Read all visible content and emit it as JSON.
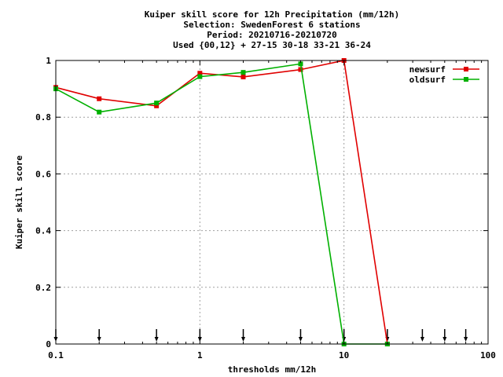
{
  "chart_data": {
    "type": "line",
    "title_lines": [
      "Kuiper skill score  for 12h Precipitation (mm/12h)",
      "Selection: SwedenForest      6 stations",
      "Period: 20210716-20210720",
      "Used {00,12} + 27-15 30-18 33-21 36-24"
    ],
    "xlabel": "thresholds mm/12h",
    "ylabel": "Kuiper skill score",
    "x_scale": "log",
    "xlim": [
      0.1,
      100
    ],
    "ylim": [
      0,
      1
    ],
    "grid": true,
    "legend_position": "top-right",
    "x_ticks": [
      {
        "value": 0.1,
        "label": "0.1"
      },
      {
        "value": 1,
        "label": "1"
      },
      {
        "value": 10,
        "label": "10"
      },
      {
        "value": 100,
        "label": "100"
      }
    ],
    "y_ticks": [
      {
        "value": 0,
        "label": "0"
      },
      {
        "value": 0.2,
        "label": "0.2"
      },
      {
        "value": 0.4,
        "label": "0.4"
      },
      {
        "value": 0.6,
        "label": "0.6"
      },
      {
        "value": 0.8,
        "label": "0.8"
      },
      {
        "value": 1,
        "label": "1"
      }
    ],
    "threshold_markers": [
      0.1,
      0.2,
      0.5,
      1,
      2,
      5,
      10,
      20,
      35,
      50,
      70
    ],
    "series": [
      {
        "name": "newsurf",
        "color": "#e00000",
        "x": [
          0.1,
          0.2,
          0.5,
          1,
          2,
          5,
          10,
          20
        ],
        "y": [
          0.905,
          0.865,
          0.84,
          0.955,
          0.942,
          0.968,
          1.0,
          0.0
        ]
      },
      {
        "name": "oldsurf",
        "color": "#00b000",
        "x": [
          0.1,
          0.2,
          0.5,
          1,
          2,
          5,
          10,
          20
        ],
        "y": [
          0.9,
          0.818,
          0.85,
          0.943,
          0.958,
          0.988,
          0.0,
          0.0
        ]
      }
    ]
  }
}
